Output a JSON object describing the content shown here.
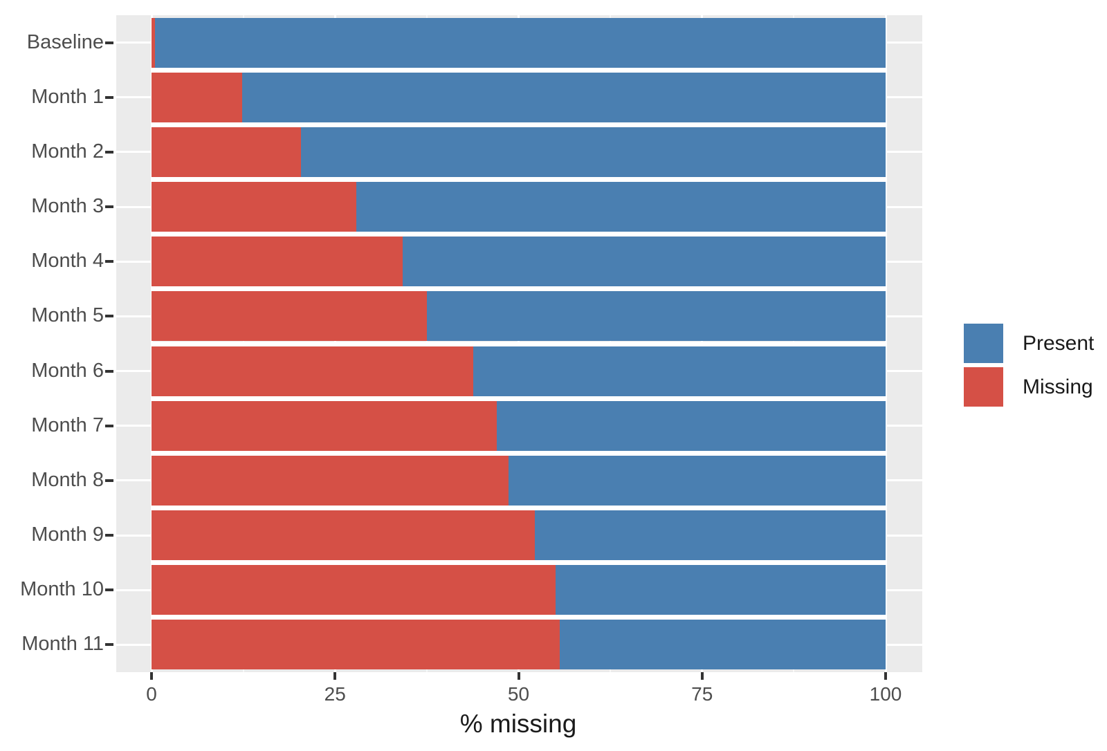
{
  "axis": {
    "x_label": "% missing",
    "x_tick_labels": [
      "0",
      "25",
      "50",
      "75",
      "100"
    ]
  },
  "legend": {
    "items": [
      {
        "label": "Present",
        "color": "#4A7FB1"
      },
      {
        "label": "Missing",
        "color": "#D55046"
      }
    ]
  },
  "colors": {
    "panel_background": "#EBEBEB",
    "grid": "#FFFFFF",
    "present": "#4A7FB1",
    "missing": "#D55046",
    "tick_text": "#4D4D4D",
    "axis_title_text": "#1A1A1A"
  },
  "chart_data": {
    "type": "bar",
    "orientation": "horizontal",
    "stacked": true,
    "title": "",
    "xlabel": "% missing",
    "ylabel": "",
    "categories": [
      "Baseline",
      "Month 1",
      "Month 2",
      "Month 3",
      "Month 4",
      "Month 5",
      "Month 6",
      "Month 7",
      "Month 8",
      "Month 9",
      "Month 10",
      "Month 11"
    ],
    "series": [
      {
        "name": "Missing",
        "color": "#D55046",
        "values": [
          0.5,
          12.3,
          20.4,
          27.9,
          34.2,
          37.5,
          43.8,
          47.0,
          48.6,
          52.2,
          55.0,
          55.6
        ]
      },
      {
        "name": "Present",
        "color": "#4A7FB1",
        "values": [
          99.5,
          87.7,
          79.6,
          72.1,
          65.8,
          62.5,
          56.2,
          53.0,
          51.4,
          47.8,
          45.0,
          44.4
        ]
      }
    ],
    "xlim": [
      0,
      100
    ],
    "x_ticks": [
      0,
      25,
      50,
      75,
      100
    ],
    "x_minor_ticks": [
      12.5,
      37.5,
      62.5,
      87.5
    ],
    "grid": true,
    "legend_position": "right",
    "legend_order": [
      "Present",
      "Missing"
    ]
  }
}
